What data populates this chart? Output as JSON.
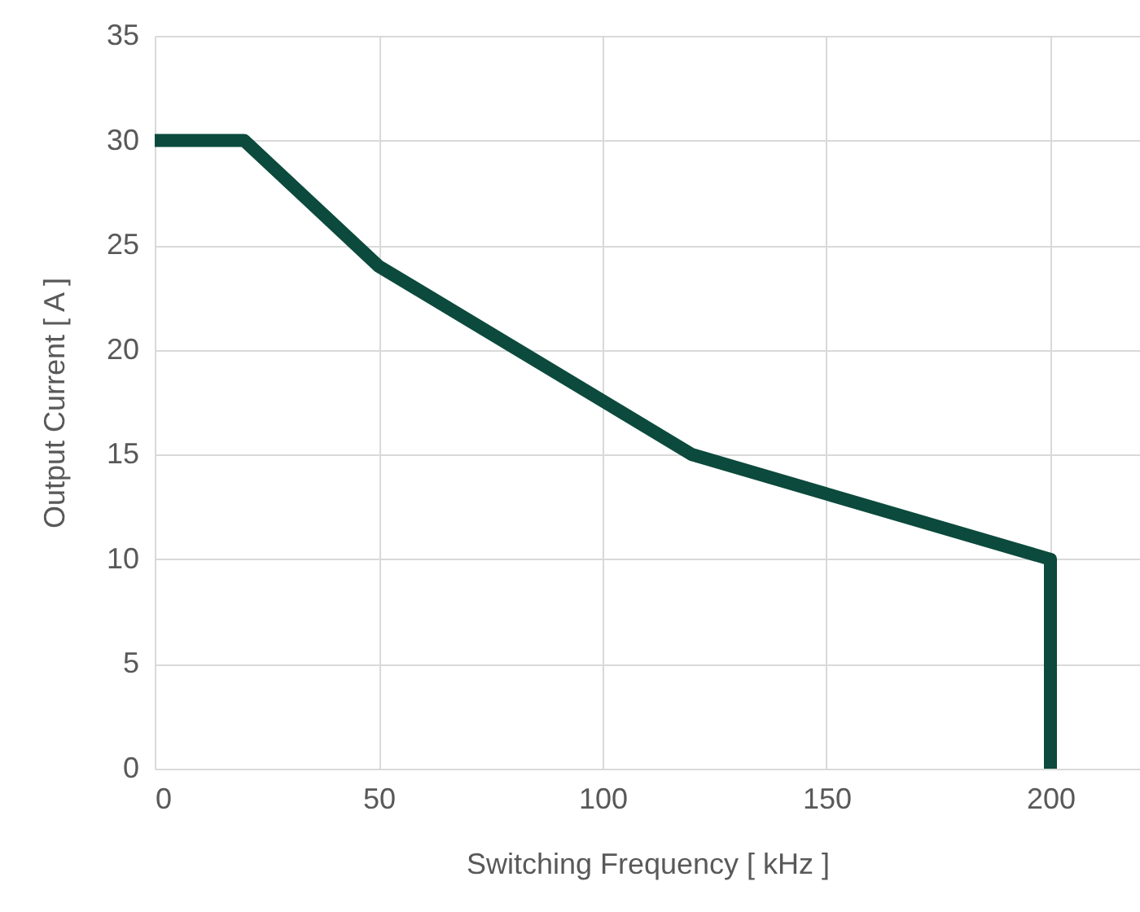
{
  "chart_data": {
    "type": "line",
    "xlabel": "Switching Frequency [ kHz ]",
    "ylabel": "Output Current    [ A ]",
    "x": [
      0,
      20,
      50,
      120,
      200,
      200
    ],
    "series": [
      {
        "color": "#0b4a3c",
        "values": [
          30,
          30,
          24,
          15,
          10,
          0
        ]
      }
    ],
    "xlim": [
      0,
      220
    ],
    "xticks": [
      0,
      50,
      100,
      150,
      200
    ],
    "ylim": [
      0,
      35
    ],
    "yticks": [
      0,
      5,
      10,
      15,
      20,
      25,
      30,
      35
    ],
    "grid": true,
    "marker": "none",
    "line_style": "solid"
  }
}
